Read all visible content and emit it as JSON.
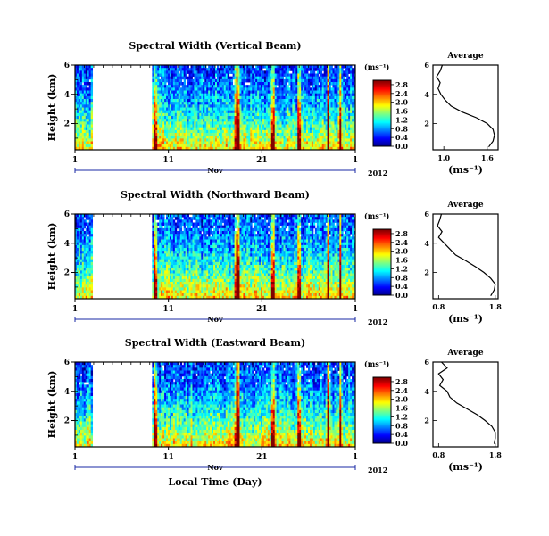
{
  "chart_data": [
    {
      "type": "heatmap",
      "title": "Spectral Width (Vertical Beam)",
      "ylabel": "Height (km)",
      "yticks": [
        "6",
        "4",
        "2"
      ],
      "ylim": [
        0.2,
        6
      ],
      "xticks": [
        "1",
        "11",
        "21",
        "1"
      ],
      "month_label": "Nov",
      "year_label": "2012",
      "xlabel": "",
      "data_gap_days": [
        1.9,
        8.3
      ],
      "colorbar": {
        "unit": "(ms⁻¹)",
        "ticks": [
          "2.8",
          "2.4",
          "2.0",
          "1.6",
          "1.2",
          "0.8",
          "0.4",
          "0.0"
        ],
        "range": [
          0.0,
          3.0
        ]
      },
      "average_profile": {
        "title": "Average",
        "xticks": [
          "1.0",
          "1.6"
        ],
        "xlim": [
          0.85,
          1.75
        ],
        "yticks": [
          "6",
          "4",
          "2"
        ],
        "ylim": [
          0.2,
          6
        ],
        "xlabel": "(ms⁻¹)",
        "heights_km": [
          6.0,
          5.6,
          5.2,
          4.8,
          4.4,
          4.0,
          3.6,
          3.2,
          2.8,
          2.4,
          2.0,
          1.6,
          1.2,
          0.8,
          0.4
        ],
        "values": [
          0.98,
          0.95,
          0.9,
          0.95,
          0.92,
          0.96,
          1.02,
          1.1,
          1.25,
          1.45,
          1.6,
          1.68,
          1.7,
          1.68,
          1.62
        ]
      }
    },
    {
      "type": "heatmap",
      "title": "Spectral Width (Northward Beam)",
      "ylabel": "Height (km)",
      "yticks": [
        "6",
        "4",
        "2"
      ],
      "ylim": [
        0.2,
        6
      ],
      "xticks": [
        "1",
        "11",
        "21",
        "1"
      ],
      "month_label": "Nov",
      "year_label": "2012",
      "xlabel": "",
      "data_gap_days": [
        1.9,
        8.3
      ],
      "colorbar": {
        "unit": "(ms⁻¹)",
        "ticks": [
          "2.8",
          "2.4",
          "2.0",
          "1.6",
          "1.2",
          "0.8",
          "0.4",
          "0.0"
        ],
        "range": [
          0.0,
          3.0
        ]
      },
      "average_profile": {
        "title": "Average",
        "xticks": [
          "0.8",
          "1.8"
        ],
        "xlim": [
          0.7,
          1.85
        ],
        "yticks": [
          "6",
          "4",
          "2"
        ],
        "ylim": [
          0.2,
          6
        ],
        "xlabel": "(ms⁻¹)",
        "heights_km": [
          6.0,
          5.6,
          5.2,
          4.8,
          4.4,
          4.0,
          3.6,
          3.2,
          2.8,
          2.4,
          2.0,
          1.6,
          1.2,
          0.8,
          0.4
        ],
        "values": [
          0.85,
          0.82,
          0.78,
          0.86,
          0.8,
          0.9,
          1.0,
          1.1,
          1.28,
          1.45,
          1.6,
          1.72,
          1.8,
          1.78,
          1.72
        ]
      }
    },
    {
      "type": "heatmap",
      "title": "Spectral Width (Eastward Beam)",
      "ylabel": "Height (km)",
      "yticks": [
        "6",
        "4",
        "2"
      ],
      "ylim": [
        0.2,
        6
      ],
      "xticks": [
        "1",
        "11",
        "21",
        "1"
      ],
      "month_label": "Nov",
      "year_label": "2012",
      "xlabel": "Local Time (Day)",
      "data_gap_days": [
        1.9,
        8.3
      ],
      "colorbar": {
        "unit": "(ms⁻¹)",
        "ticks": [
          "2.8",
          "2.4",
          "2.0",
          "1.6",
          "1.2",
          "0.8",
          "0.4",
          "0.0"
        ],
        "range": [
          0.0,
          3.0
        ]
      },
      "average_profile": {
        "title": "Average",
        "xticks": [
          "0.8",
          "1.8"
        ],
        "xlim": [
          0.7,
          1.85
        ],
        "yticks": [
          "6",
          "4",
          "2"
        ],
        "ylim": [
          0.2,
          6
        ],
        "xlabel": "(ms⁻¹)",
        "heights_km": [
          6.0,
          5.6,
          5.2,
          4.8,
          4.4,
          4.0,
          3.6,
          3.2,
          2.8,
          2.4,
          2.0,
          1.6,
          1.2,
          0.8,
          0.4
        ],
        "values": [
          0.85,
          0.95,
          0.8,
          0.88,
          0.82,
          0.95,
          1.0,
          1.12,
          1.3,
          1.48,
          1.62,
          1.74,
          1.8,
          1.8,
          1.78
        ]
      }
    }
  ]
}
